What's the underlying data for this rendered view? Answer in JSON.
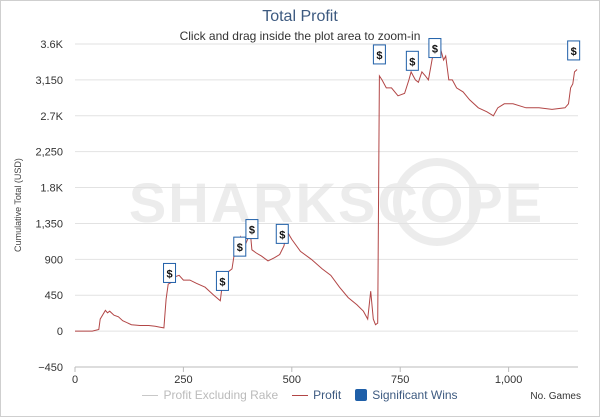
{
  "title": "Total Profit",
  "subtitle": "Click and drag inside the plot area to zoom-in",
  "watermark": "SHARKSCOPE",
  "colors": {
    "profit": "#b24646",
    "excl_rake": "#c8c8c8",
    "sig_win": "#1f5fa8",
    "title": "#3d5a80",
    "grid": "#e2e2e2"
  },
  "legend": {
    "excl_rake": "Profit Excluding Rake",
    "profit": "Profit",
    "sig_wins": "Significant Wins"
  },
  "chart_data": {
    "type": "line",
    "title": "Total Profit",
    "xlabel": "No. Games",
    "ylabel": "Cumulative Total (USD)",
    "xlim": [
      0,
      1160
    ],
    "ylim": [
      -450,
      3600
    ],
    "x_ticks": [
      0,
      250,
      500,
      750,
      1000
    ],
    "x_tick_labels": [
      "0",
      "250",
      "500",
      "750",
      "1,000"
    ],
    "y_ticks": [
      -450,
      0,
      450,
      900,
      1350,
      1800,
      2250,
      2700,
      3150,
      3600
    ],
    "y_tick_labels": [
      "−450",
      "0",
      "450",
      "900",
      "1,350",
      "1.8K",
      "2,250",
      "2.7K",
      "3,150",
      "3.6K"
    ],
    "grid": "horizontal",
    "legend_position": "bottom",
    "series": [
      {
        "name": "Profit",
        "x": [
          0,
          40,
          55,
          58,
          70,
          75,
          80,
          90,
          100,
          110,
          130,
          150,
          170,
          185,
          195,
          205,
          210,
          215,
          222,
          230,
          240,
          250,
          265,
          280,
          300,
          320,
          335,
          342,
          348,
          355,
          362,
          370,
          378,
          382,
          390,
          398,
          402,
          408,
          418,
          430,
          445,
          460,
          472,
          482,
          488,
          500,
          520,
          545,
          570,
          590,
          610,
          630,
          650,
          665,
          675,
          682,
          688,
          693,
          698,
          702,
          708,
          718,
          730,
          745,
          760,
          770,
          775,
          780,
          785,
          792,
          800,
          808,
          815,
          820,
          825,
          830,
          840,
          850,
          855,
          862,
          870,
          880,
          895,
          910,
          930,
          950,
          965,
          975,
          990,
          1010,
          1040,
          1070,
          1100,
          1130,
          1138,
          1143,
          1148,
          1152,
          1158
        ],
        "values": [
          0,
          0,
          20,
          150,
          260,
          230,
          250,
          200,
          180,
          130,
          80,
          70,
          70,
          60,
          50,
          40,
          400,
          590,
          610,
          680,
          700,
          640,
          640,
          600,
          550,
          450,
          380,
          690,
          730,
          750,
          780,
          1060,
          1100,
          1180,
          1050,
          1150,
          1380,
          1020,
          980,
          940,
          880,
          920,
          960,
          1070,
          1260,
          1150,
          1000,
          900,
          780,
          700,
          550,
          420,
          330,
          250,
          150,
          500,
          150,
          80,
          100,
          3200,
          3150,
          3050,
          3050,
          2950,
          2980,
          3150,
          3250,
          3200,
          3150,
          3120,
          3250,
          3200,
          3150,
          3300,
          3450,
          3500,
          3600,
          3400,
          3450,
          3150,
          3150,
          3050,
          3000,
          2900,
          2800,
          2750,
          2700,
          2800,
          2850,
          2850,
          2800,
          2800,
          2780,
          2800,
          2850,
          3050,
          3100,
          3250,
          3280
        ]
      },
      {
        "name": "Significant Wins",
        "marker": "$",
        "x": [
          218,
          340,
          380,
          408,
          478,
          702,
          778,
          830,
          1150
        ],
        "values": [
          560,
          460,
          890,
          1110,
          1050,
          3300,
          3220,
          3380,
          3350
        ]
      }
    ]
  }
}
